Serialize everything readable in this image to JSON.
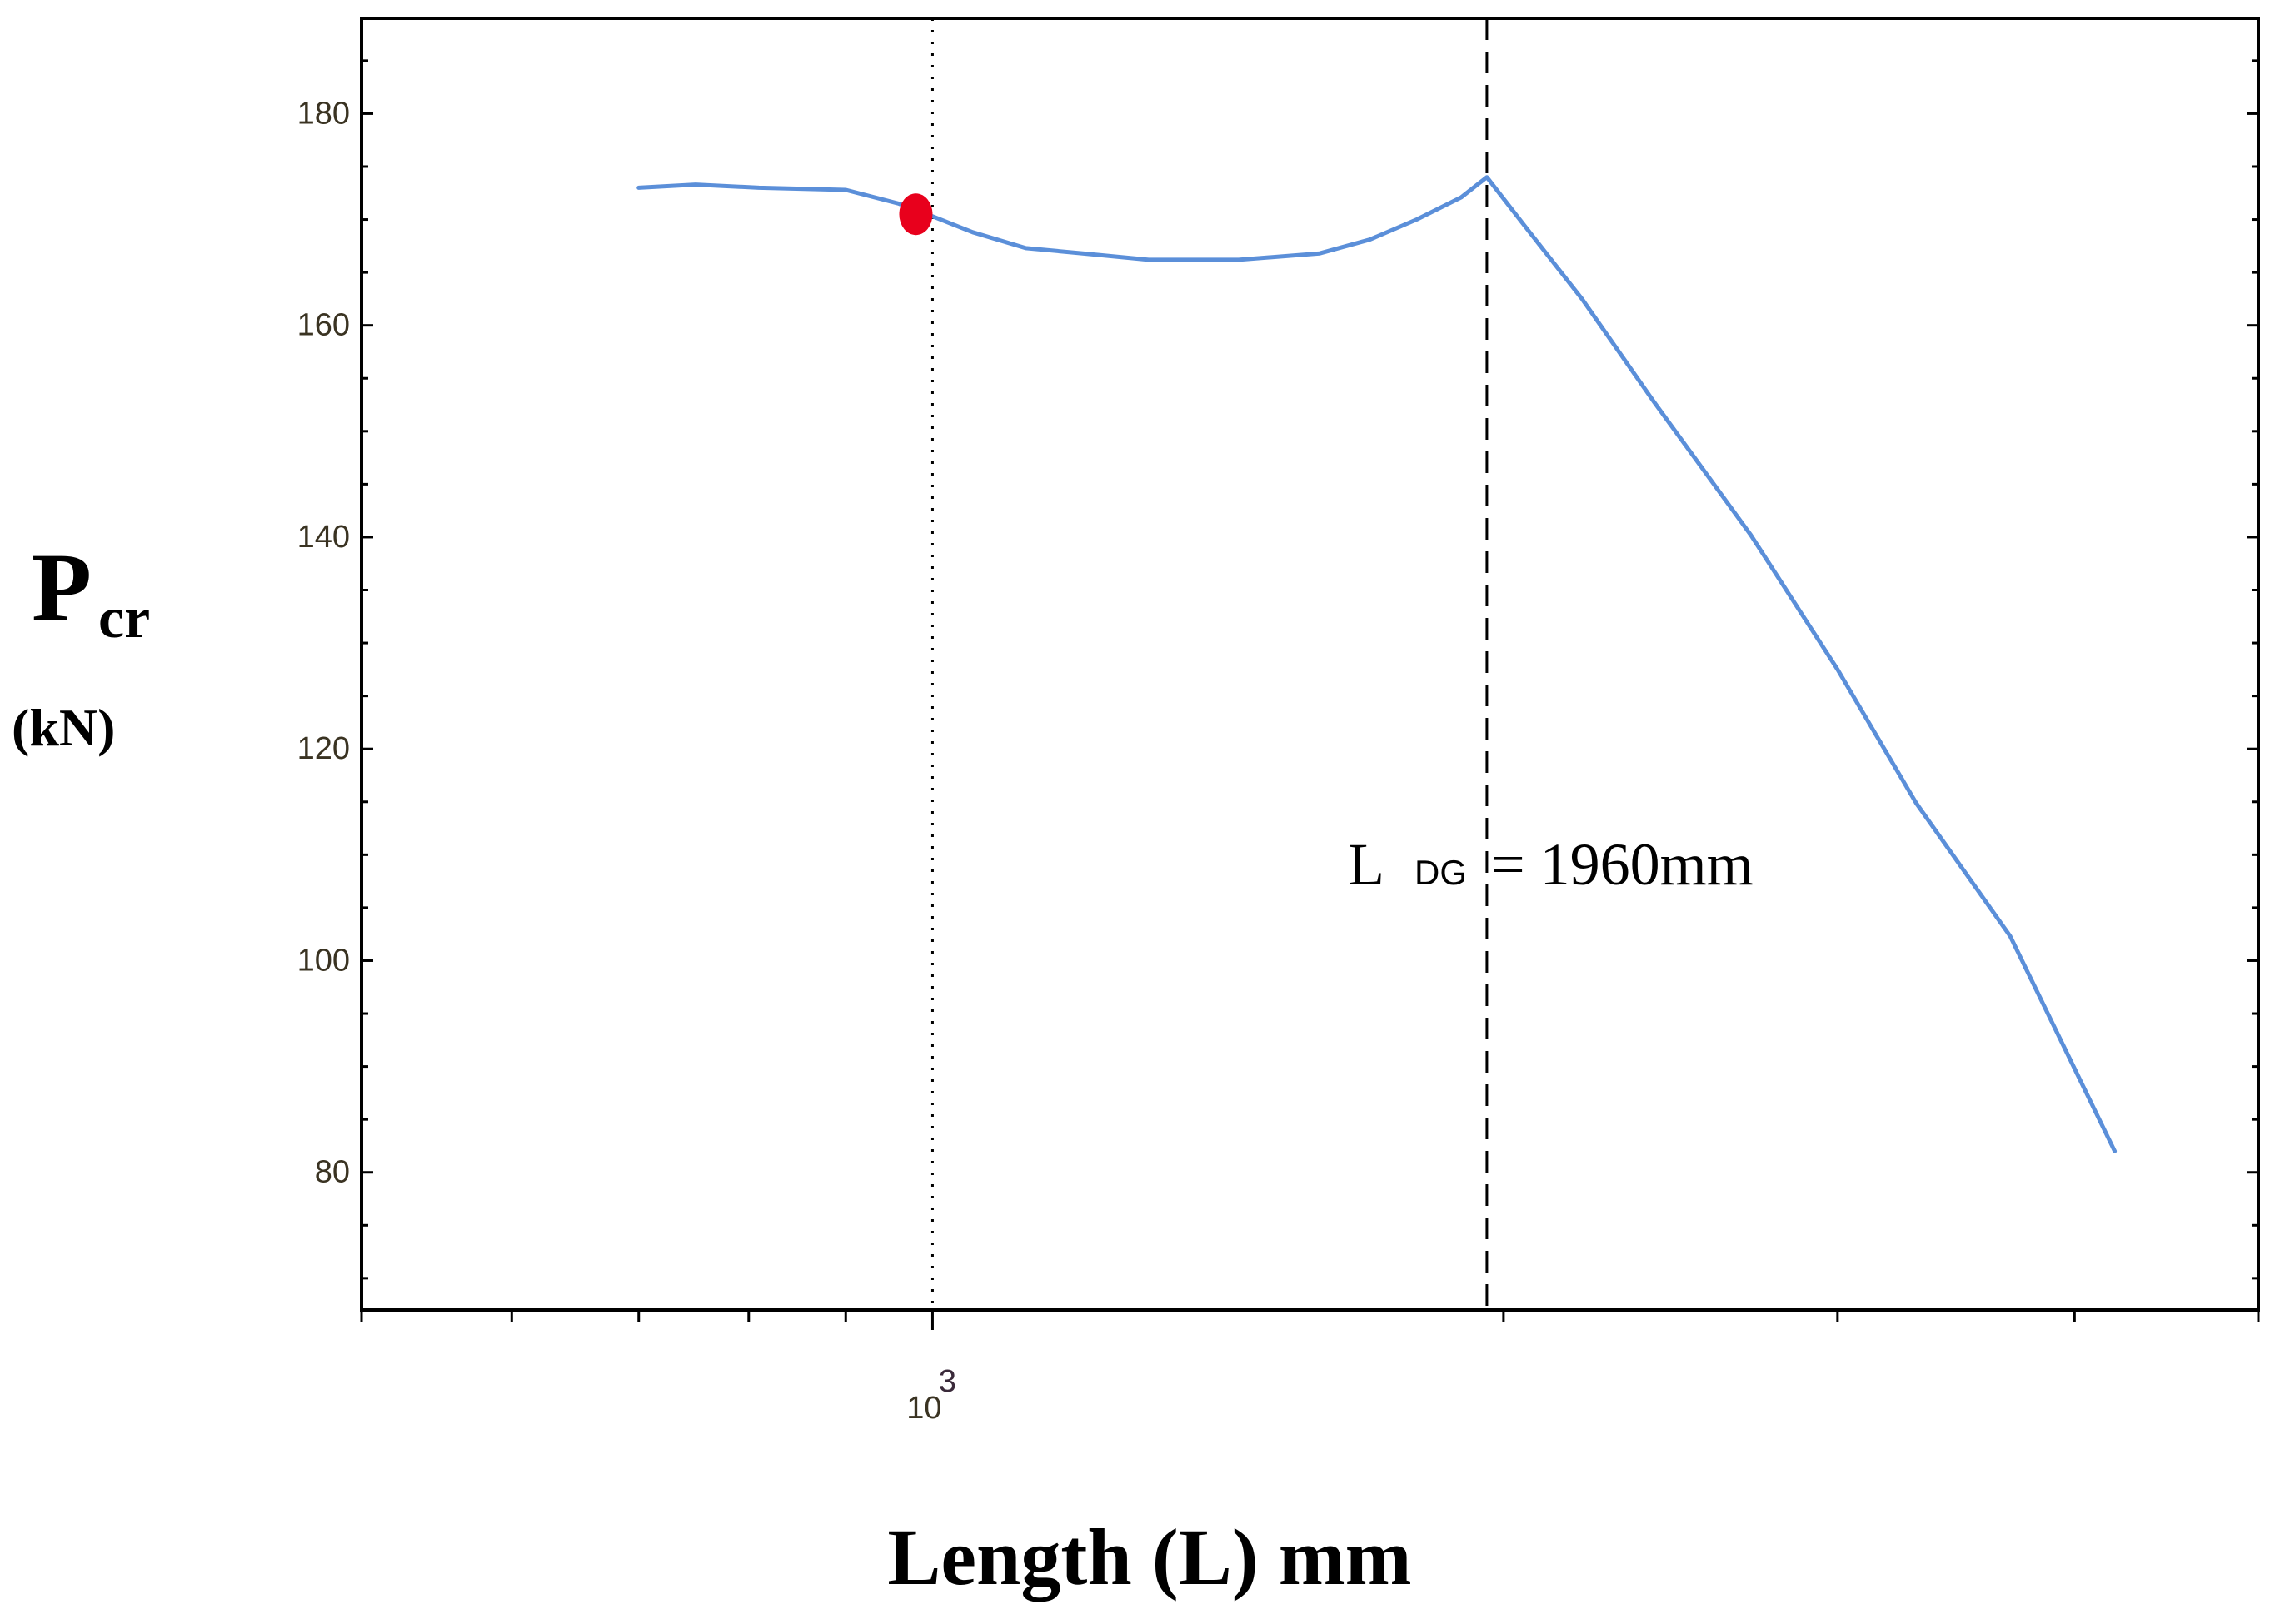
{
  "chart_data": {
    "type": "line",
    "title": "",
    "xlabel": "Length (L) mm",
    "ylabel": {
      "main": "P",
      "sub": "cr",
      "unit": "(kN)"
    },
    "xscale": "log",
    "xlim": [
      500,
      5000
    ],
    "ylim": [
      67,
      189
    ],
    "y_ticks": [
      80,
      100,
      120,
      140,
      160,
      180
    ],
    "y_tick_labels": [
      "80",
      "100",
      "120",
      "140",
      "160",
      "180"
    ],
    "x_tick_labels": [
      {
        "base": "10",
        "exp": "3",
        "value": 1000
      }
    ],
    "grid": false,
    "series": [
      {
        "color": "#5b8fd9",
        "x": [
          700,
          750,
          810,
          900,
          960,
          1000,
          1050,
          1120,
          1200,
          1300,
          1450,
          1600,
          1700,
          1800,
          1900,
          1960,
          2050,
          2200,
          2400,
          2700,
          3000,
          3300,
          3700,
          4200
        ],
        "y": [
          173,
          173.3,
          173,
          172.8,
          171.5,
          170.3,
          168.8,
          167.3,
          166.8,
          166.2,
          166.2,
          166.8,
          168.1,
          170,
          172.1,
          174,
          169.5,
          162.5,
          152.8,
          140.2,
          127.5,
          114.9,
          102.3,
          82
        ]
      }
    ],
    "marker": {
      "x": 980,
      "y": 170.5,
      "color": "#e8001c"
    },
    "reference_lines": [
      {
        "x": 1000,
        "style": "dotted",
        "color": "#000000"
      },
      {
        "x": 1960,
        "style": "dashed",
        "color": "#000000"
      }
    ],
    "annotation": {
      "main": "L",
      "sub": "DG",
      "text": "= 1960mm"
    }
  }
}
